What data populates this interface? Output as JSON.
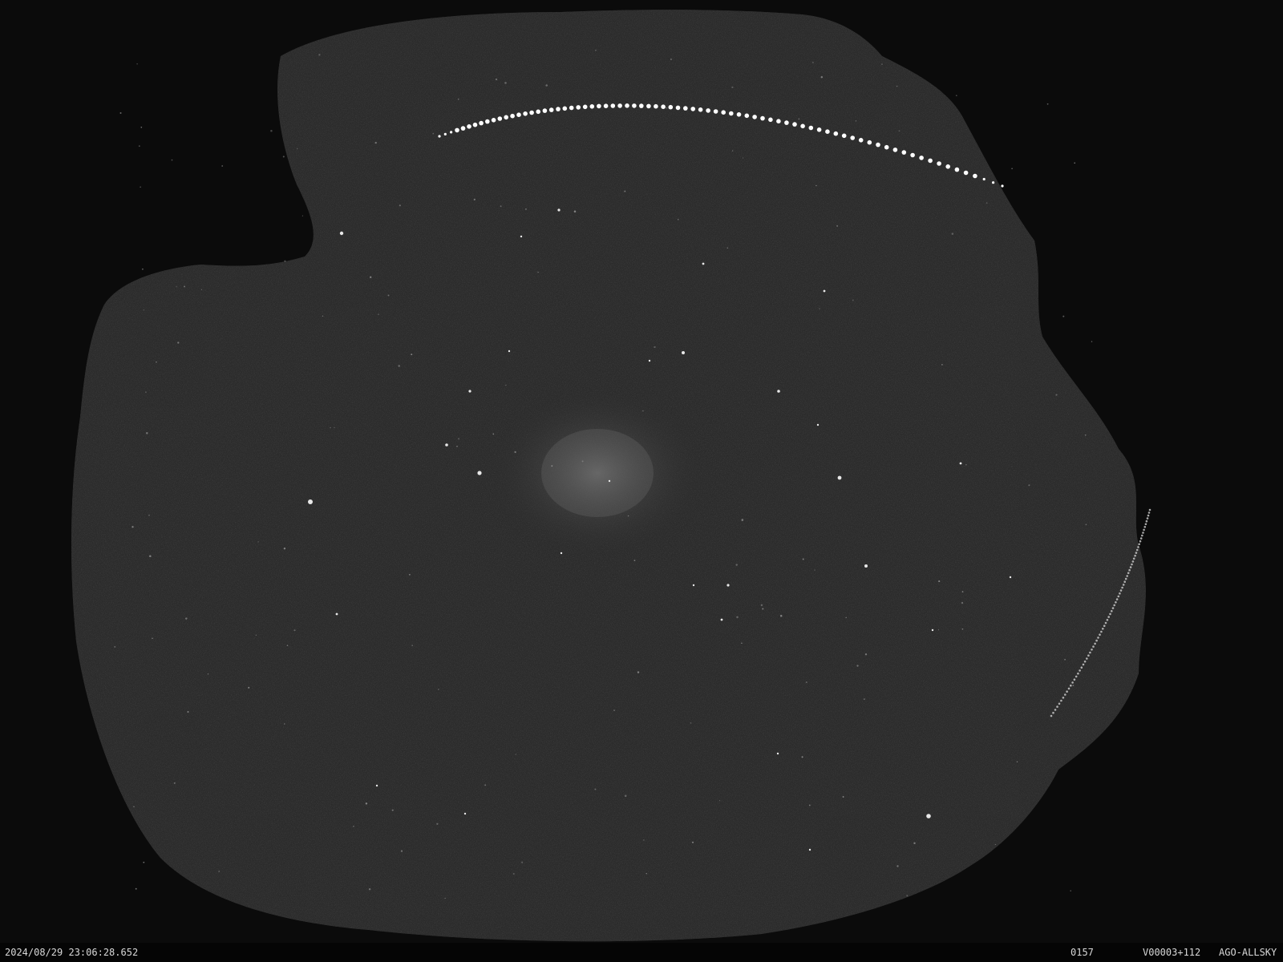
{
  "camera": {
    "timestamp": "2024/08/29 23:06:28.652",
    "frame_number": "0157",
    "video_code": "V00003+112",
    "station": "AGO-ALLSKY"
  }
}
